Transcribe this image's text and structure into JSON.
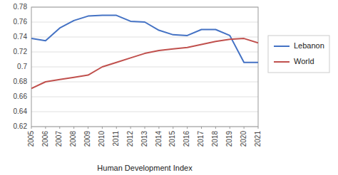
{
  "chart_data": {
    "type": "line",
    "x_label": "Human Development Index",
    "x": [
      2005,
      2006,
      2007,
      2008,
      2009,
      2010,
      2011,
      2012,
      2013,
      2014,
      2015,
      2016,
      2017,
      2018,
      2019,
      2020,
      2021
    ],
    "series": [
      {
        "name": "Lebanon",
        "color": "#4472C4",
        "values": [
          0.738,
          0.735,
          0.752,
          0.762,
          0.768,
          0.769,
          0.769,
          0.761,
          0.76,
          0.749,
          0.743,
          0.742,
          0.75,
          0.75,
          0.742,
          0.706,
          0.706
        ]
      },
      {
        "name": "World",
        "color": "#C0504D",
        "values": [
          0.671,
          0.68,
          0.683,
          0.686,
          0.689,
          0.7,
          0.706,
          0.712,
          0.718,
          0.722,
          0.724,
          0.726,
          0.73,
          0.734,
          0.737,
          0.738,
          0.732
        ]
      }
    ],
    "xlim": [
      2005,
      2021
    ],
    "xticks": [
      2005,
      2006,
      2007,
      2008,
      2009,
      2010,
      2011,
      2012,
      2013,
      2014,
      2015,
      2016,
      2017,
      2018,
      2019,
      2020,
      2021
    ],
    "ylim": [
      0.62,
      0.78
    ],
    "yticks": [
      0.62,
      0.64,
      0.66,
      0.68,
      0.7,
      0.72,
      0.74,
      0.76,
      0.78
    ],
    "grid": true,
    "legend": "right"
  }
}
